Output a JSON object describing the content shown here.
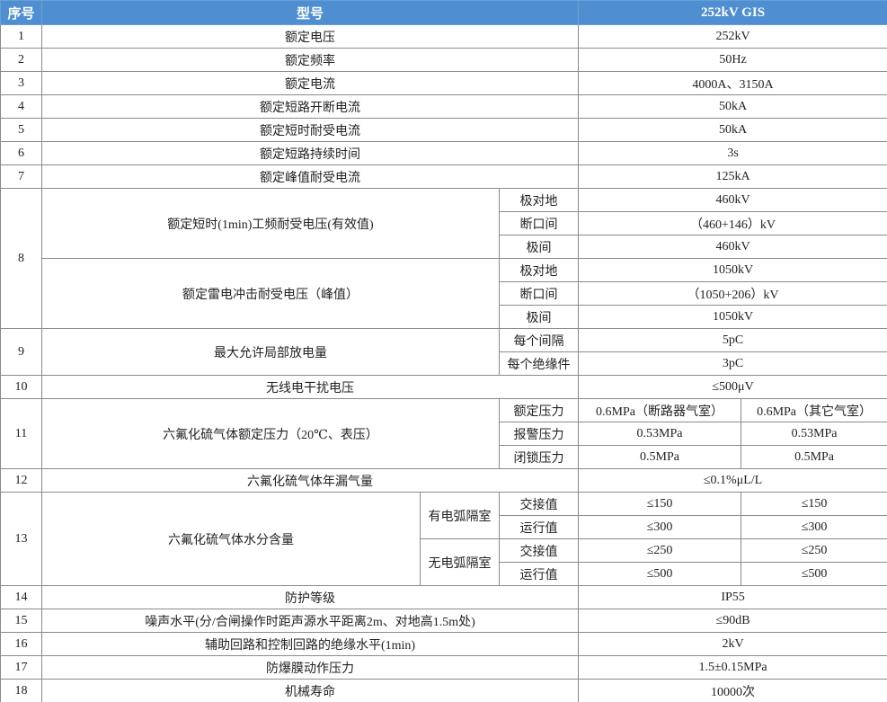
{
  "table": {
    "header": {
      "no": "序号",
      "model": "型号",
      "spec": "252kV GIS"
    },
    "rows": [
      {
        "no": "1",
        "name": "额定电压",
        "value": "252kV"
      },
      {
        "no": "2",
        "name": "额定频率",
        "value": "50Hz"
      },
      {
        "no": "3",
        "name": "额定电流",
        "value": "4000A、3150A"
      },
      {
        "no": "4",
        "name": "额定短路开断电流",
        "value": "50kA"
      },
      {
        "no": "5",
        "name": "额定短时耐受电流",
        "value": "50kA"
      },
      {
        "no": "6",
        "name": "额定短路持续时间",
        "value": "3s"
      },
      {
        "no": "7",
        "name": "额定峰值耐受电流",
        "value": "125kA"
      },
      {
        "no": "8",
        "groups": [
          {
            "name": "额定短时(1min)工频耐受电压(有效值)",
            "items": [
              {
                "label": "极对地",
                "value": "460kV"
              },
              {
                "label": "断口间",
                "value": "（460+146）kV"
              },
              {
                "label": "极间",
                "value": "460kV"
              }
            ]
          },
          {
            "name": "额定雷电冲击耐受电压（峰值）",
            "items": [
              {
                "label": "极对地",
                "value": "1050kV"
              },
              {
                "label": "断口间",
                "value": "（1050+206）kV"
              },
              {
                "label": "极间",
                "value": "1050kV"
              }
            ]
          }
        ]
      },
      {
        "no": "9",
        "name": "最大允许局部放电量",
        "items": [
          {
            "label": "每个间隔",
            "value": "5pC"
          },
          {
            "label": "每个绝缘件",
            "value": "3pC"
          }
        ]
      },
      {
        "no": "10",
        "name": "无线电干扰电压",
        "value": "≤500μV"
      },
      {
        "no": "11",
        "name": "六氟化硫气体额定压力（20℃、表压）",
        "items": [
          {
            "label": "额定压力",
            "values": [
              "0.6MPa（断路器气室）",
              "0.6MPa（其它气室）"
            ]
          },
          {
            "label": "报警压力",
            "values": [
              "0.53MPa",
              "0.53MPa"
            ]
          },
          {
            "label": "闭锁压力",
            "values": [
              "0.5MPa",
              "0.5MPa"
            ]
          }
        ]
      },
      {
        "no": "12",
        "name": "六氟化硫气体年漏气量",
        "value": "≤0.1%μL/L"
      },
      {
        "no": "13",
        "name": "六氟化硫气体水分含量",
        "groups": [
          {
            "name": "有电弧隔室",
            "items": [
              {
                "label": "交接值",
                "values": [
                  "≤150",
                  "≤150"
                ]
              },
              {
                "label": "运行值",
                "values": [
                  "≤300",
                  "≤300"
                ]
              }
            ]
          },
          {
            "name": "无电弧隔室",
            "items": [
              {
                "label": "交接值",
                "values": [
                  "≤250",
                  "≤250"
                ]
              },
              {
                "label": "运行值",
                "values": [
                  "≤500",
                  "≤500"
                ]
              }
            ]
          }
        ]
      },
      {
        "no": "14",
        "name": "防护等级",
        "value": "IP55"
      },
      {
        "no": "15",
        "name": "噪声水平(分/合闸操作时距声源水平距离2m、对地高1.5m处)",
        "value": "≤90dB"
      },
      {
        "no": "16",
        "name": "辅助回路和控制回路的绝缘水平(1min)",
        "value": "2kV"
      },
      {
        "no": "17",
        "name": "防爆膜动作压力",
        "value": "1.5±0.15MPa"
      },
      {
        "no": "18",
        "name": "机械寿命",
        "value": "10000次"
      }
    ]
  }
}
